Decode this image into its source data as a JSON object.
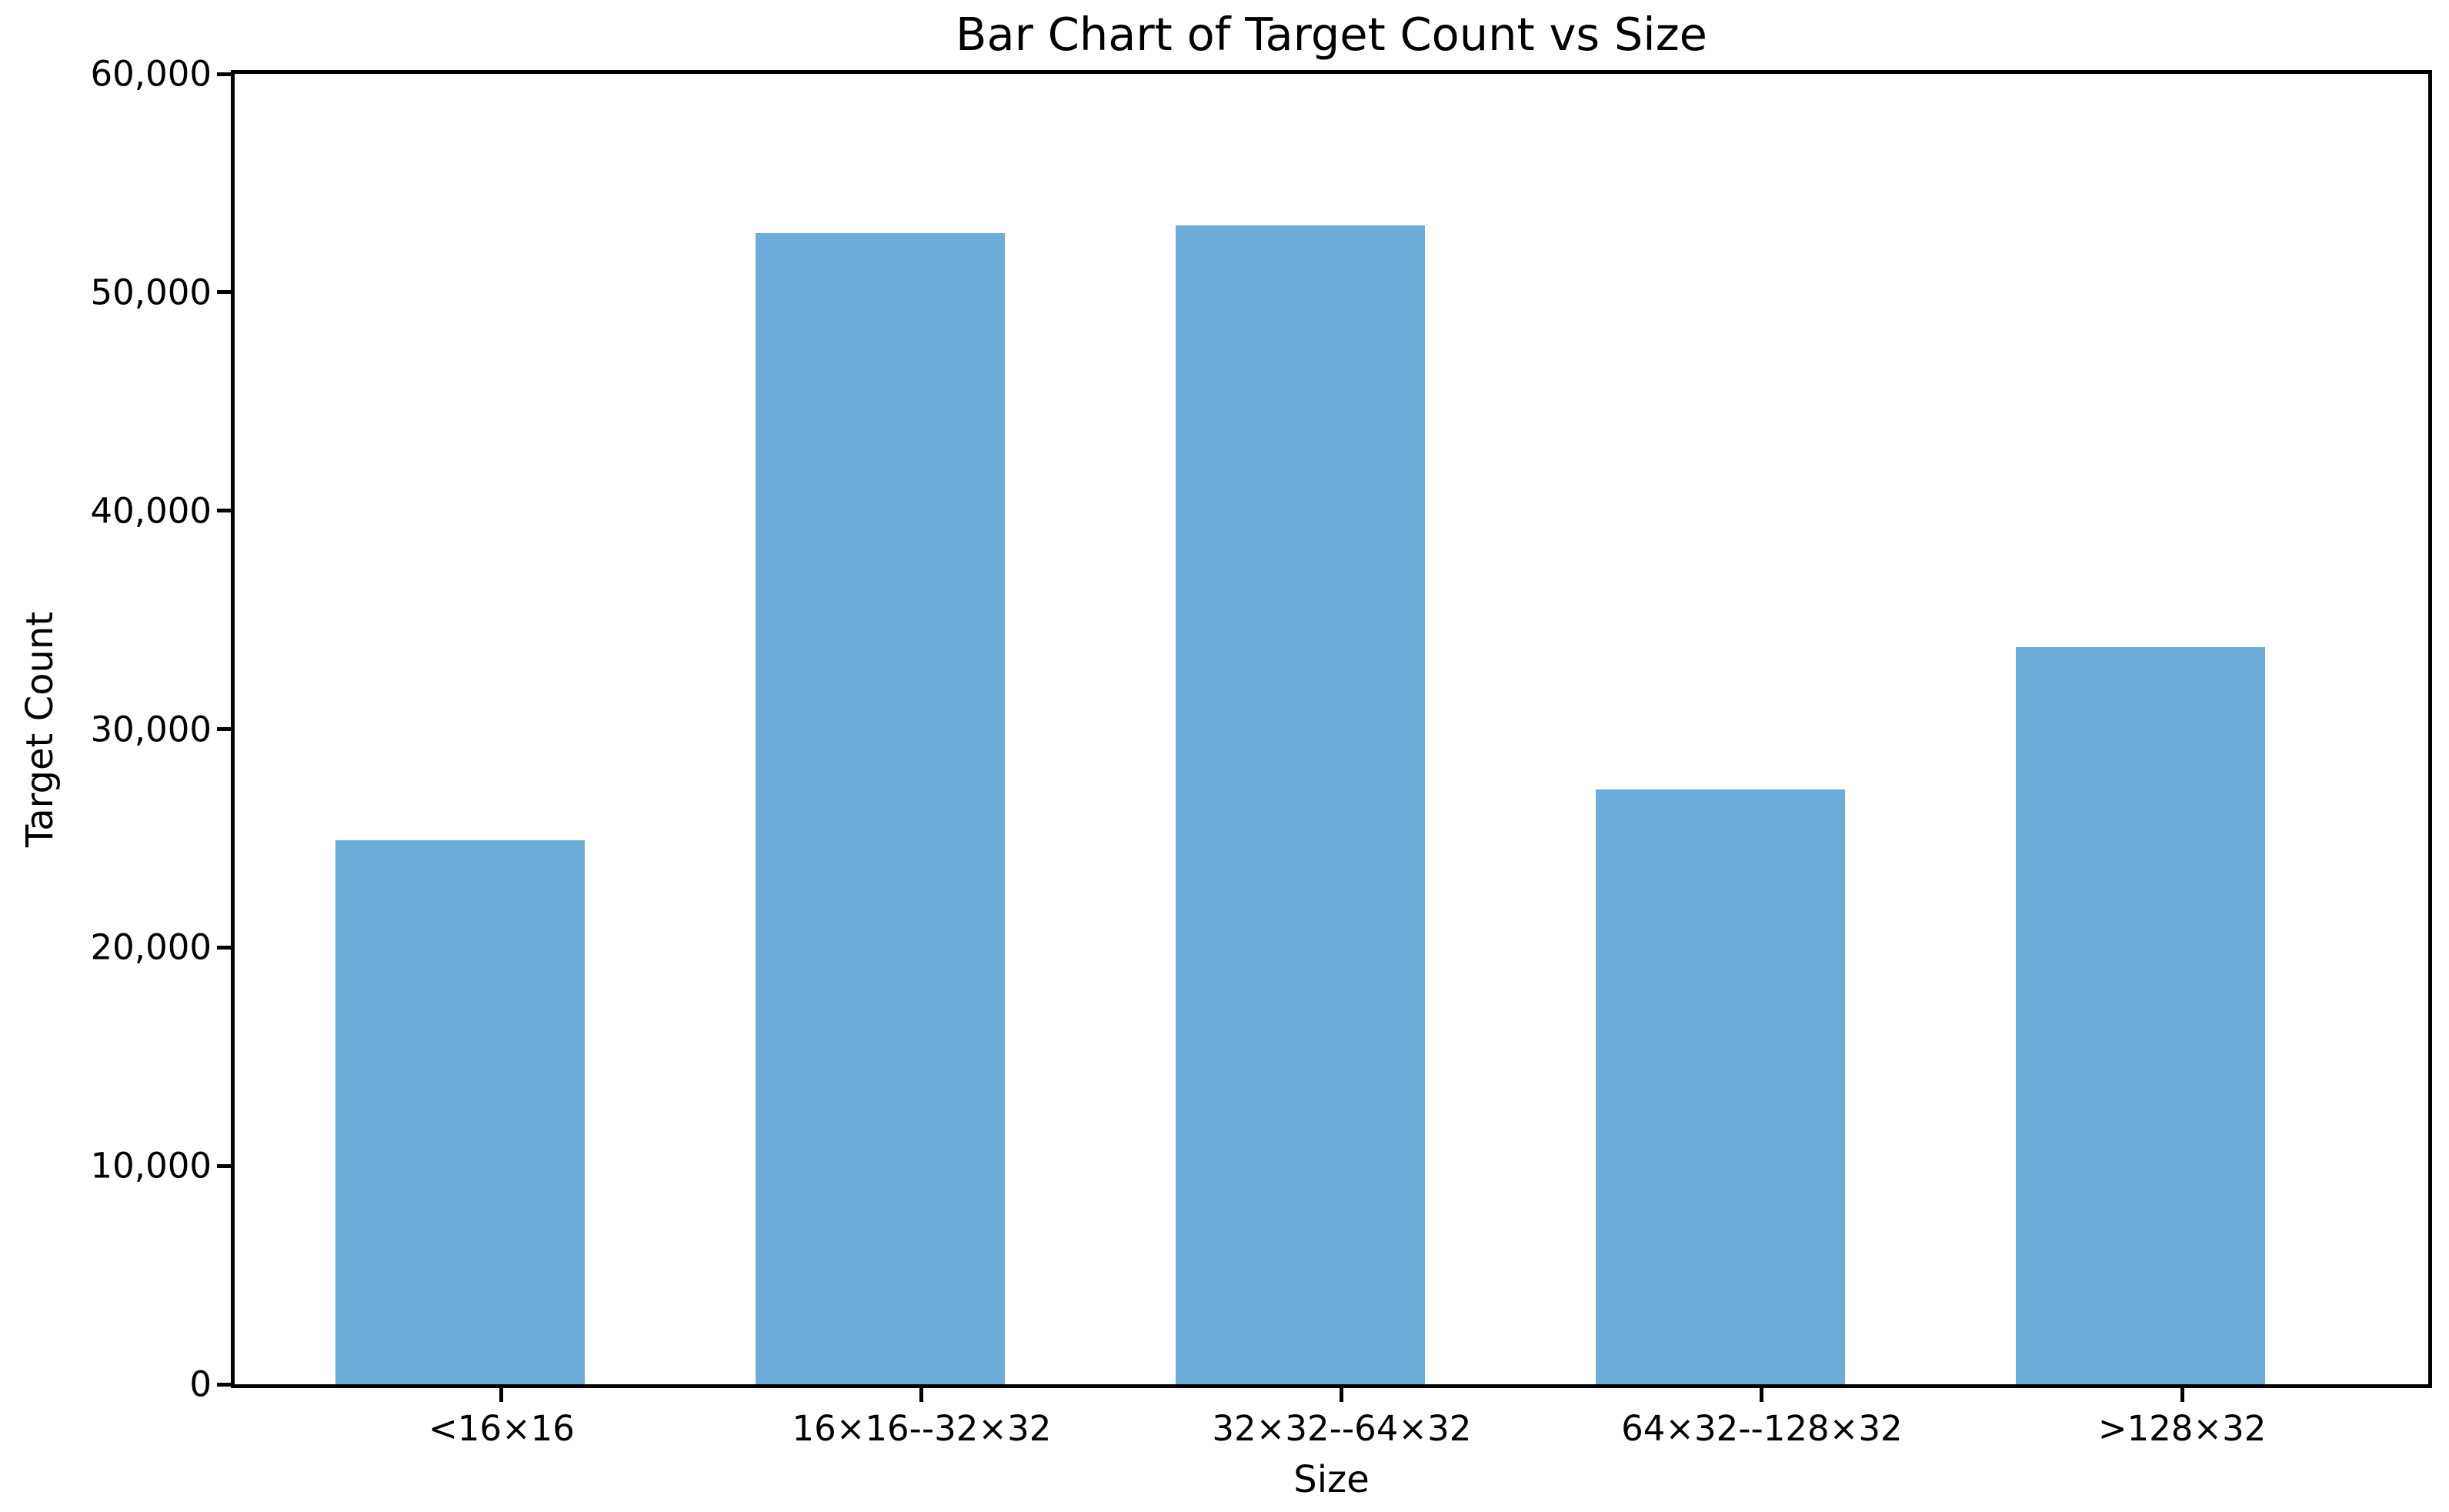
{
  "chart_data": {
    "type": "bar",
    "title": "Bar Chart of Target Count vs Size",
    "xlabel": "Size",
    "ylabel": "Target Count",
    "categories": [
      "<16×16",
      "16×16--32×32",
      "32×32--64×32",
      "64×32--128×32",
      ">128×32"
    ],
    "values": [
      24900,
      52700,
      53050,
      27250,
      33750
    ],
    "ylim": [
      0,
      60000
    ],
    "yticks": [
      0,
      10000,
      20000,
      30000,
      40000,
      50000,
      60000
    ],
    "yticklabels": [
      "0",
      "10,000",
      "20,000",
      "30,000",
      "40,000",
      "50,000",
      "60,000"
    ],
    "bar_color": "#6CACD8",
    "axis_color": "#000000",
    "background_color": "#FFFFFF",
    "grid": false,
    "legend": null
  }
}
